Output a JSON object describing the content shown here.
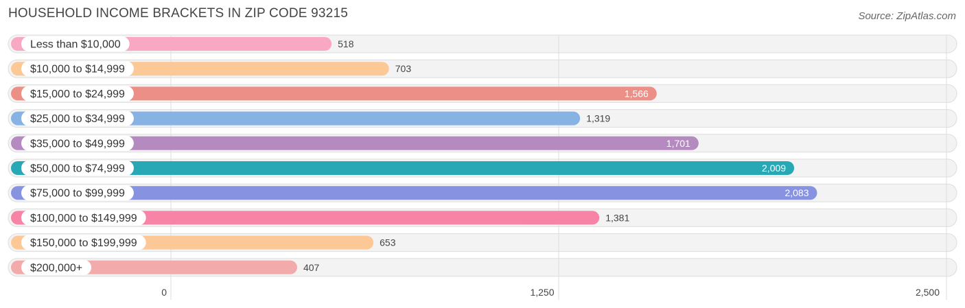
{
  "title": "HOUSEHOLD INCOME BRACKETS IN ZIP CODE 93215",
  "source": "Source: ZipAtlas.com",
  "chart_data": {
    "type": "bar",
    "orientation": "horizontal",
    "title": "HOUSEHOLD INCOME BRACKETS IN ZIP CODE 93215",
    "xlabel": "",
    "ylabel": "",
    "xlim": [
      0,
      2500
    ],
    "xticks": [
      0,
      1250,
      2500
    ],
    "xtick_labels": [
      "0",
      "1,250",
      "2,500"
    ],
    "grid": true,
    "categories": [
      "Less than $10,000",
      "$10,000 to $14,999",
      "$15,000 to $24,999",
      "$25,000 to $34,999",
      "$35,000 to $49,999",
      "$50,000 to $74,999",
      "$75,000 to $99,999",
      "$100,000 to $149,999",
      "$150,000 to $199,999",
      "$200,000+"
    ],
    "values": [
      518,
      703,
      1566,
      1319,
      1701,
      2009,
      2083,
      1381,
      653,
      407
    ],
    "value_labels": [
      "518",
      "703",
      "1,566",
      "1,319",
      "1,701",
      "2,009",
      "2,083",
      "1,381",
      "653",
      "407"
    ],
    "colors": [
      "#f9a8c4",
      "#fbc896",
      "#ec8f86",
      "#86b3e3",
      "#b58ac0",
      "#27a8b4",
      "#8793e0",
      "#f784a6",
      "#fbc896",
      "#f2aaaa"
    ]
  }
}
